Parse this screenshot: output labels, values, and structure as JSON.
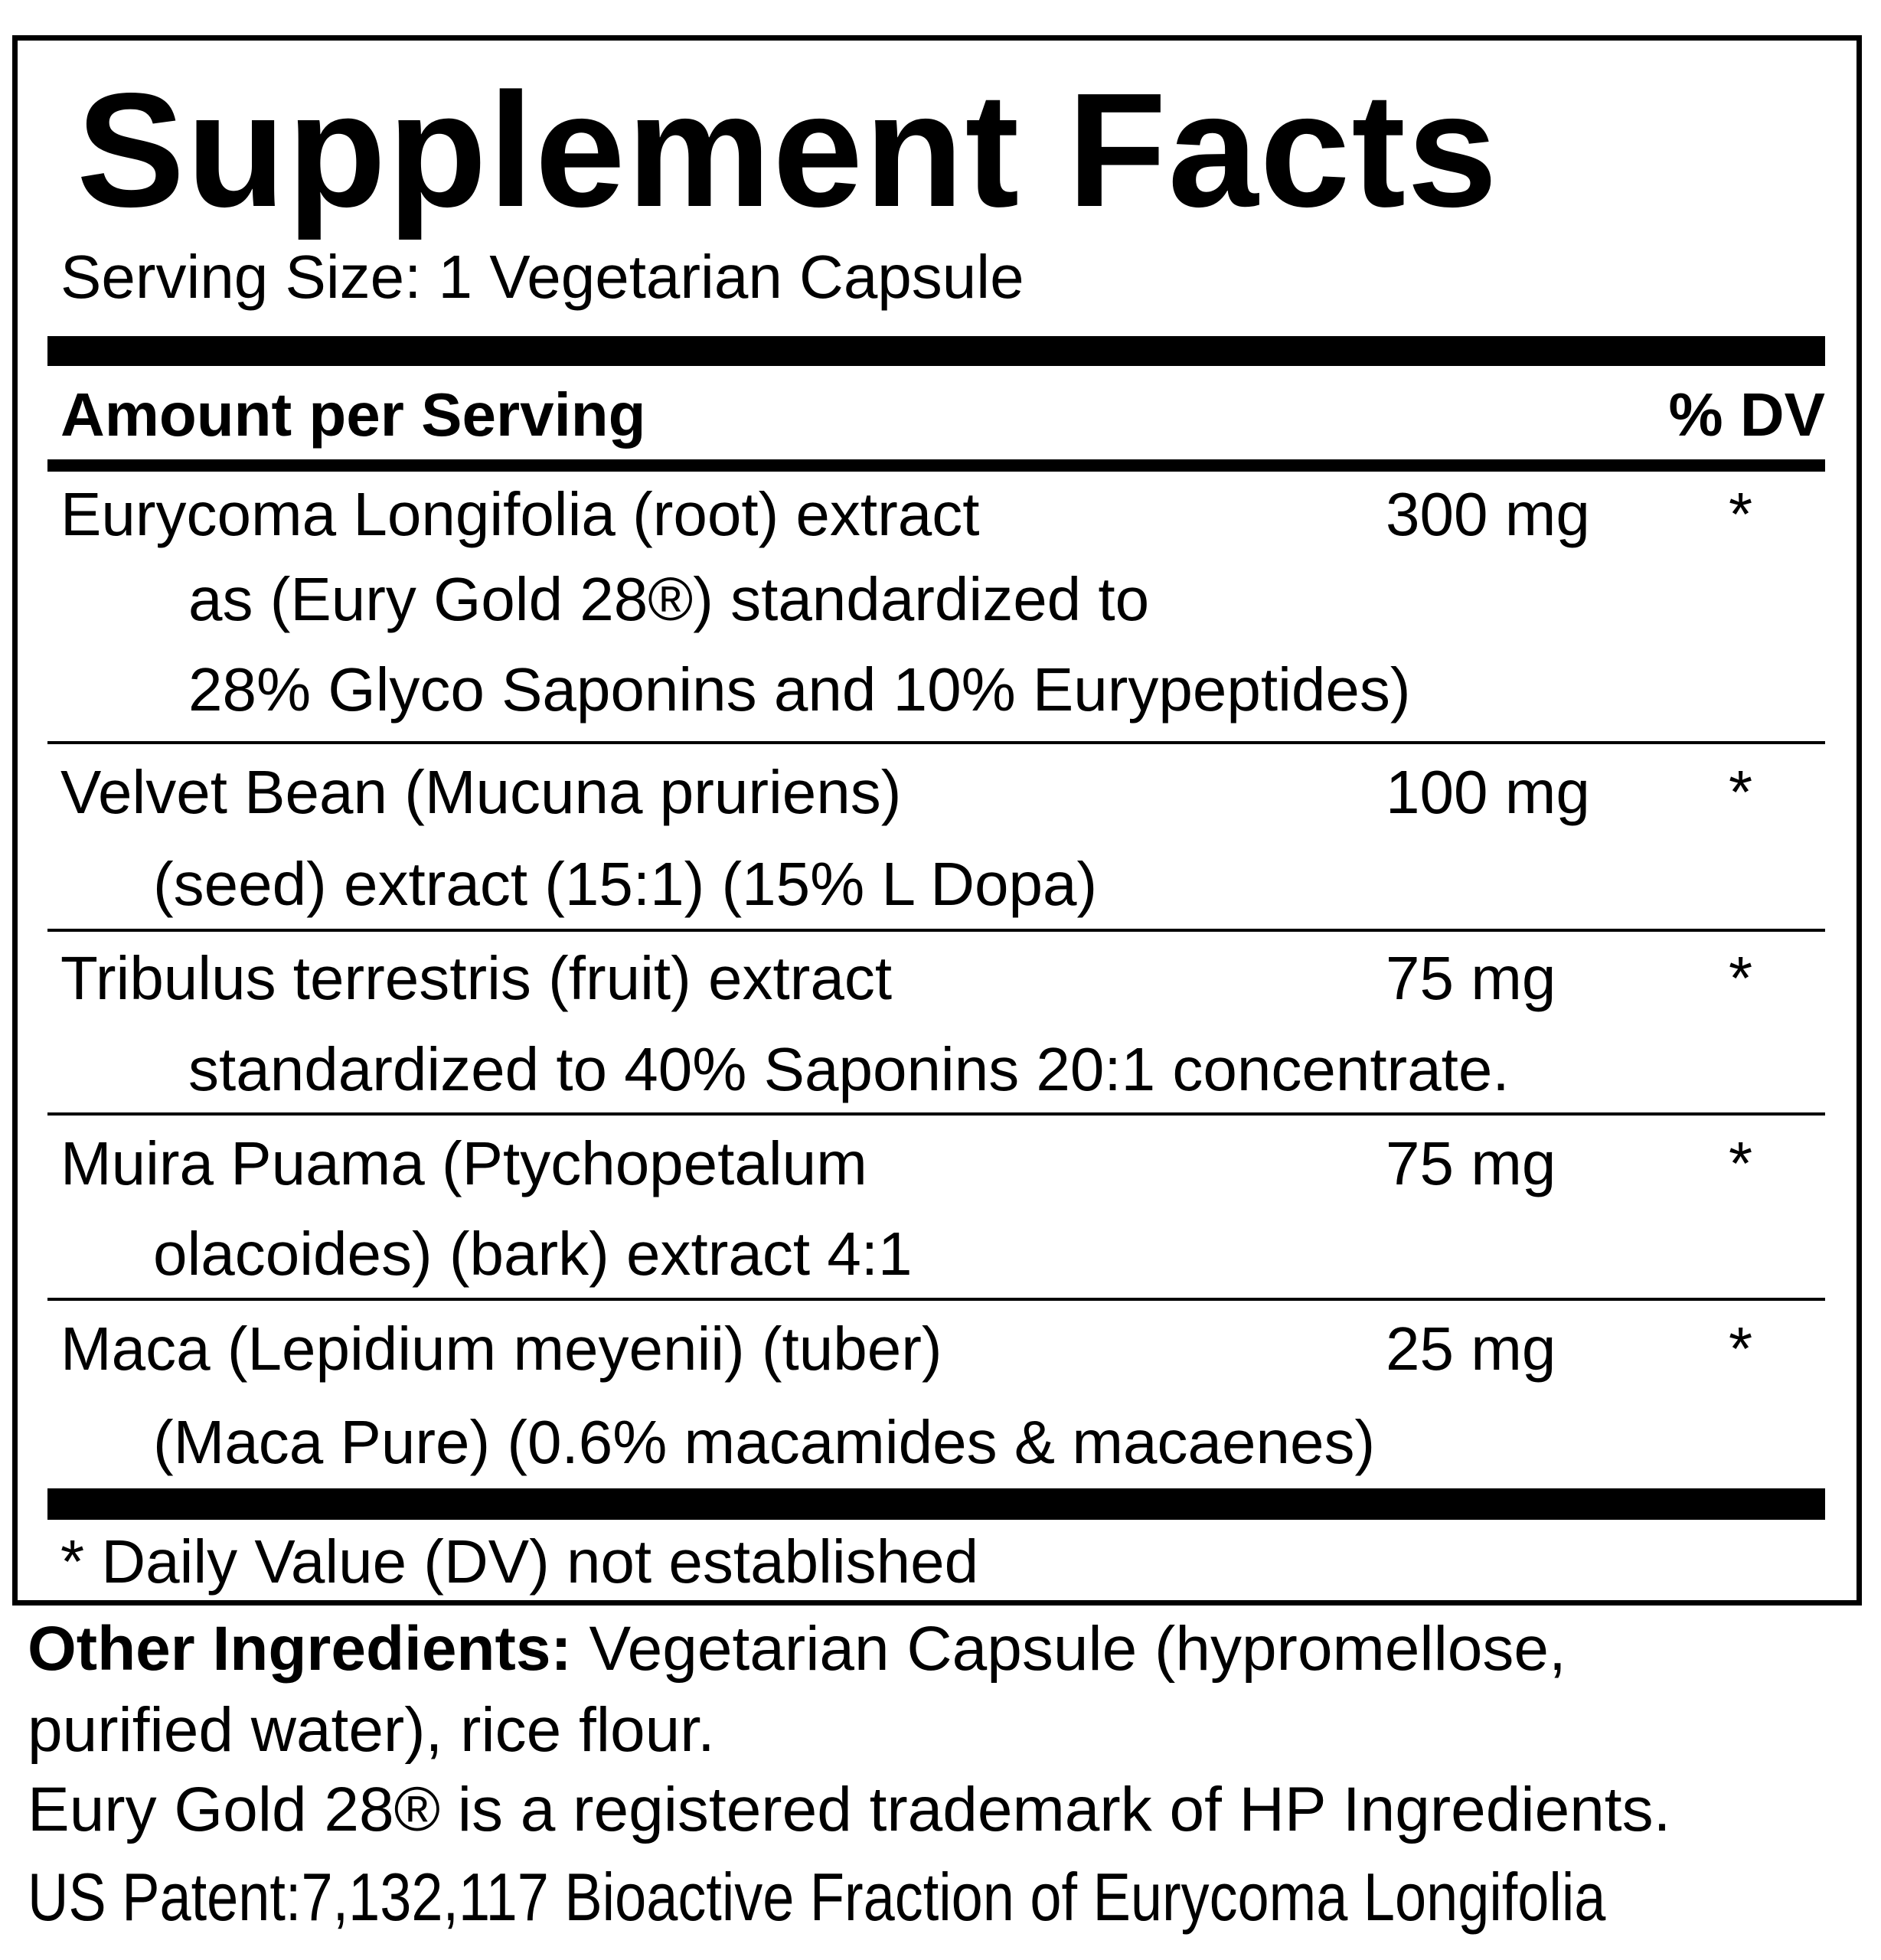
{
  "title": "Supplement Facts",
  "serving_size": "Serving Size:  1 Vegetarian Capsule",
  "header": {
    "amount_label": "Amount per Serving",
    "dv_label": "% DV"
  },
  "ingredients": [
    {
      "lines": [
        "Eurycoma Longifolia (root) extract",
        "as (Eury Gold 28®) standardized to",
        "28% Glyco Saponins and 10% Eurypeptides)"
      ],
      "amount": "300 mg",
      "dv": "*"
    },
    {
      "lines": [
        "Velvet Bean (Mucuna pruriens)",
        "(seed) extract (15:1) (15% L Dopa)"
      ],
      "amount": "100 mg",
      "dv": "*"
    },
    {
      "lines": [
        "Tribulus terrestris (fruit) extract",
        "standardized to 40% Saponins 20:1 concentrate."
      ],
      "amount": "75 mg",
      "dv": "*"
    },
    {
      "lines": [
        "Muira Puama (Ptychopetalum",
        "olacoides) (bark) extract 4:1"
      ],
      "amount": "75 mg",
      "dv": "*"
    },
    {
      "lines": [
        "Maca (Lepidium meyenii) (tuber)",
        "(Maca Pure) (0.6% macamides & macaenes)"
      ],
      "amount": "25 mg",
      "dv": "*"
    }
  ],
  "footnote": "* Daily Value (DV) not established",
  "other_ingredients": {
    "label": "Other Ingredients:",
    "text_line1": " Vegetarian Capsule (hypromellose,",
    "text_line2": "purified water), rice flour."
  },
  "trademark": "Eury Gold 28® is a registered trademark of HP Ingredients.",
  "patent": "US Patent:7,132,117 Bioactive Fraction of Eurycoma Longifolia"
}
